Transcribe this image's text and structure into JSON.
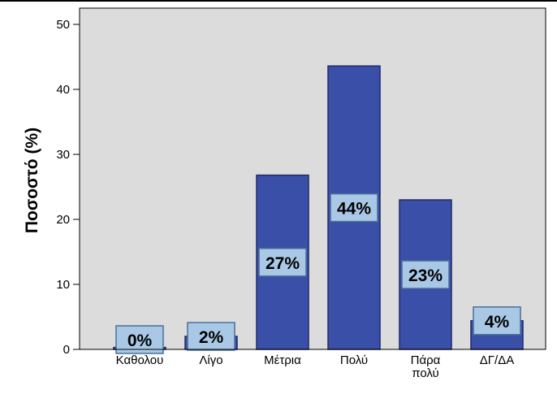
{
  "chart_data": {
    "type": "bar",
    "title": "",
    "xlabel": "",
    "ylabel": "Ποσοστό (%)",
    "ylim": [
      0,
      50
    ],
    "yticks": [
      0,
      10,
      20,
      30,
      40,
      50
    ],
    "grid": false,
    "categories": [
      [
        "Καθολου"
      ],
      [
        "Λίγο"
      ],
      [
        "Μέτρια"
      ],
      [
        "Πολύ"
      ],
      [
        "Πάρα",
        "πολύ"
      ],
      [
        "ΔΓ/ΔΑ"
      ]
    ],
    "values": [
      0.3,
      2,
      26.8,
      43.6,
      23,
      4.4
    ],
    "data_labels": [
      "0%",
      "2%",
      "27%",
      "44%",
      "23%",
      "4%"
    ],
    "colors": {
      "bar_fill": "#3a4fa8",
      "bar_stroke": "#1f2a6a",
      "plot_background": "#dcdcdc",
      "label_box_fill": "#a9c8e6",
      "label_box_stroke": "#4a6f99"
    }
  }
}
